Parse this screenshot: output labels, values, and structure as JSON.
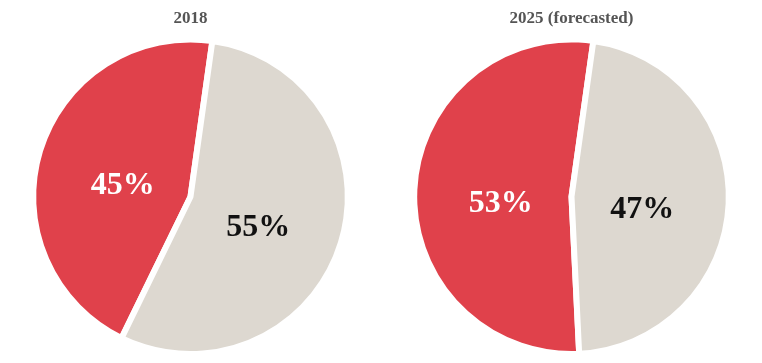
{
  "chart_data": [
    {
      "type": "pie",
      "title": "2018",
      "values": [
        45,
        55
      ],
      "value_labels": [
        "45%",
        "55%"
      ],
      "colors": [
        "#e0414b",
        "#ddd8d0"
      ],
      "data_labels": true
    },
    {
      "type": "pie",
      "title": "2025 (forecasted)",
      "values": [
        53,
        47
      ],
      "value_labels": [
        "53%",
        "47%"
      ],
      "colors": [
        "#e0414b",
        "#ddd8d0"
      ],
      "data_labels": true
    }
  ]
}
